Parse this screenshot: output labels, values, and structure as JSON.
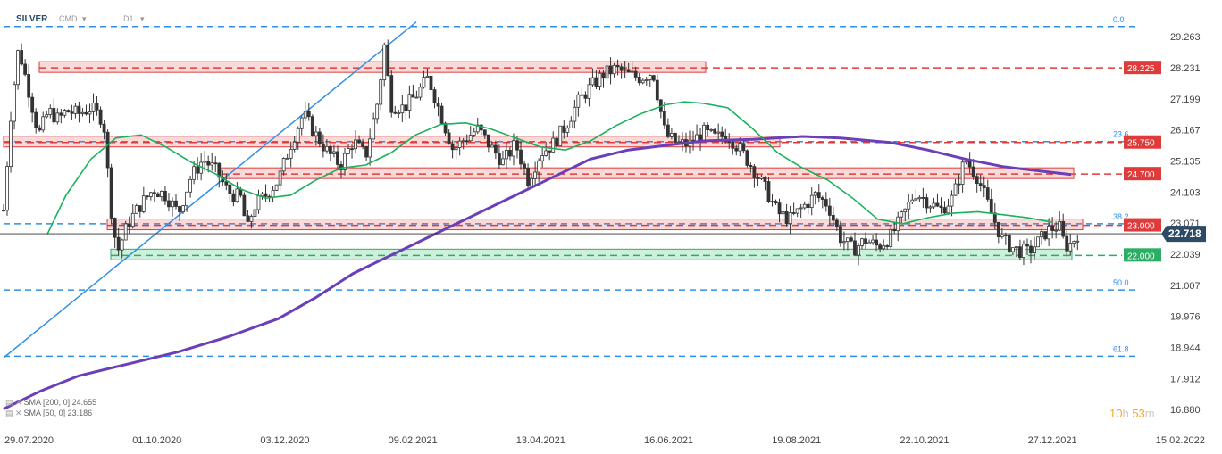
{
  "header": {
    "symbol": "SILVER",
    "type": "CMD",
    "timeframe": "D1"
  },
  "legend": [
    "SMA [200, 0] 24.655",
    "SMA [50, 0] 23.186"
  ],
  "countdown": {
    "hours": "10",
    "hours_unit": "h",
    "minutes": "53",
    "minutes_unit": "m"
  },
  "colors": {
    "resistance": "#e03b3b",
    "support": "#2cae64",
    "fib": "#2f8fe8",
    "sma200": "#6a3fb8",
    "sma50": "#19b25c",
    "candle_up": "#ffffff",
    "candle_down": "#333333"
  },
  "chart_data": {
    "type": "candlestick",
    "instrument": "SILVER",
    "timeframe": "D1",
    "ylim": [
      16.5,
      29.8
    ],
    "y_ticks": [
      "29.263",
      "28.231",
      "27.199",
      "26.167",
      "25.135",
      "24.103",
      "23.071",
      "22.039",
      "21.007",
      "19.976",
      "18.944",
      "17.912",
      "16.880"
    ],
    "x_ticks": [
      "29.07.2020",
      "01.10.2020",
      "03.12.2020",
      "09.02.2021",
      "13.04.2021",
      "16.06.2021",
      "19.08.2021",
      "22.10.2021",
      "27.12.2021",
      "15.02.2022"
    ],
    "current_price": {
      "value": 22.718,
      "label": "22.718"
    },
    "levels": [
      {
        "value": 28.225,
        "label": "28.225",
        "kind": "resistance"
      },
      {
        "value": 25.75,
        "label": "25.750",
        "kind": "resistance"
      },
      {
        "value": 24.7,
        "label": "24.700",
        "kind": "resistance"
      },
      {
        "value": 23.0,
        "label": "23.000",
        "kind": "resistance"
      },
      {
        "value": 22.0,
        "label": "22.000",
        "kind": "support"
      }
    ],
    "fibonacci": [
      {
        "value": 29.6,
        "label": "0.0"
      },
      {
        "value": 25.78,
        "label": "23.6"
      },
      {
        "value": 23.05,
        "label": "38.2"
      },
      {
        "value": 20.85,
        "label": "50.0"
      },
      {
        "value": 18.65,
        "label": "61.8"
      }
    ],
    "trendline": {
      "from": [
        "29.07.2020",
        18.6
      ],
      "to": [
        "07.01.2021",
        29.7
      ]
    },
    "series": [
      {
        "name": "SMA 200",
        "points": [
          [
            0,
            16.9
          ],
          [
            0.03,
            17.5
          ],
          [
            0.06,
            18.0
          ],
          [
            0.1,
            18.4
          ],
          [
            0.14,
            18.8
          ],
          [
            0.18,
            19.3
          ],
          [
            0.22,
            19.9
          ],
          [
            0.25,
            20.6
          ],
          [
            0.28,
            21.4
          ],
          [
            0.31,
            22.0
          ],
          [
            0.34,
            22.6
          ],
          [
            0.37,
            23.2
          ],
          [
            0.4,
            23.8
          ],
          [
            0.43,
            24.4
          ],
          [
            0.45,
            24.8
          ],
          [
            0.47,
            25.2
          ],
          [
            0.5,
            25.5
          ],
          [
            0.53,
            25.65
          ],
          [
            0.56,
            25.8
          ],
          [
            0.6,
            25.85
          ],
          [
            0.64,
            25.95
          ],
          [
            0.67,
            25.9
          ],
          [
            0.71,
            25.75
          ],
          [
            0.74,
            25.5
          ],
          [
            0.77,
            25.2
          ],
          [
            0.8,
            24.95
          ],
          [
            0.83,
            24.8
          ],
          [
            0.855,
            24.68
          ]
        ]
      },
      {
        "name": "SMA 50",
        "points": [
          [
            0.035,
            22.7
          ],
          [
            0.05,
            24.0
          ],
          [
            0.07,
            25.2
          ],
          [
            0.09,
            25.9
          ],
          [
            0.11,
            26.0
          ],
          [
            0.13,
            25.6
          ],
          [
            0.15,
            25.1
          ],
          [
            0.17,
            24.7
          ],
          [
            0.19,
            24.2
          ],
          [
            0.21,
            23.9
          ],
          [
            0.23,
            24.0
          ],
          [
            0.25,
            24.5
          ],
          [
            0.27,
            24.9
          ],
          [
            0.29,
            25.0
          ],
          [
            0.31,
            25.4
          ],
          [
            0.33,
            26.0
          ],
          [
            0.35,
            26.35
          ],
          [
            0.37,
            26.4
          ],
          [
            0.39,
            26.2
          ],
          [
            0.41,
            25.9
          ],
          [
            0.43,
            25.6
          ],
          [
            0.45,
            25.5
          ],
          [
            0.47,
            25.8
          ],
          [
            0.49,
            26.3
          ],
          [
            0.51,
            26.7
          ],
          [
            0.53,
            27.0
          ],
          [
            0.545,
            27.1
          ],
          [
            0.56,
            27.05
          ],
          [
            0.58,
            26.9
          ],
          [
            0.6,
            26.2
          ],
          [
            0.62,
            25.4
          ],
          [
            0.64,
            24.9
          ],
          [
            0.66,
            24.5
          ],
          [
            0.68,
            23.9
          ],
          [
            0.7,
            23.2
          ],
          [
            0.72,
            23.05
          ],
          [
            0.74,
            23.25
          ],
          [
            0.76,
            23.4
          ],
          [
            0.78,
            23.45
          ],
          [
            0.8,
            23.35
          ],
          [
            0.82,
            23.25
          ],
          [
            0.84,
            23.1
          ]
        ]
      }
    ],
    "candles_trace": [
      [
        0,
        23.5
      ],
      [
        0.006,
        26.8
      ],
      [
        0.012,
        28.9
      ],
      [
        0.02,
        27.5
      ],
      [
        0.028,
        26.0
      ],
      [
        0.036,
        26.8
      ],
      [
        0.044,
        26.5
      ],
      [
        0.05,
        26.8
      ],
      [
        0.06,
        26.7
      ],
      [
        0.07,
        26.9
      ],
      [
        0.08,
        26.5
      ],
      [
        0.085,
        24.0
      ],
      [
        0.088,
        22.8
      ],
      [
        0.092,
        22.2
      ],
      [
        0.1,
        23.1
      ],
      [
        0.11,
        23.7
      ],
      [
        0.12,
        24.2
      ],
      [
        0.13,
        24.0
      ],
      [
        0.14,
        23.4
      ],
      [
        0.15,
        24.6
      ],
      [
        0.16,
        25.2
      ],
      [
        0.17,
        24.8
      ],
      [
        0.18,
        24.1
      ],
      [
        0.19,
        23.9
      ],
      [
        0.195,
        22.8
      ],
      [
        0.2,
        23.6
      ],
      [
        0.21,
        24.0
      ],
      [
        0.22,
        24.5
      ],
      [
        0.23,
        25.7
      ],
      [
        0.24,
        26.7
      ],
      [
        0.25,
        26.0
      ],
      [
        0.26,
        25.4
      ],
      [
        0.27,
        25.0
      ],
      [
        0.28,
        25.8
      ],
      [
        0.29,
        25.3
      ],
      [
        0.3,
        27.2
      ],
      [
        0.305,
        29.0
      ],
      [
        0.31,
        27.0
      ],
      [
        0.32,
        26.9
      ],
      [
        0.33,
        27.3
      ],
      [
        0.34,
        27.9
      ],
      [
        0.35,
        26.7
      ],
      [
        0.36,
        25.5
      ],
      [
        0.37,
        25.9
      ],
      [
        0.38,
        26.2
      ],
      [
        0.39,
        25.6
      ],
      [
        0.4,
        25.1
      ],
      [
        0.41,
        25.7
      ],
      [
        0.42,
        24.5
      ],
      [
        0.43,
        25.4
      ],
      [
        0.44,
        25.7
      ],
      [
        0.45,
        26.3
      ],
      [
        0.46,
        27.1
      ],
      [
        0.47,
        27.6
      ],
      [
        0.48,
        28.0
      ],
      [
        0.49,
        28.2
      ],
      [
        0.5,
        28.0
      ],
      [
        0.51,
        27.9
      ],
      [
        0.52,
        28.1
      ],
      [
        0.53,
        26.0
      ],
      [
        0.54,
        25.7
      ],
      [
        0.55,
        25.7
      ],
      [
        0.56,
        26.1
      ],
      [
        0.57,
        25.9
      ],
      [
        0.58,
        26.0
      ],
      [
        0.59,
        25.5
      ],
      [
        0.6,
        24.9
      ],
      [
        0.61,
        24.2
      ],
      [
        0.62,
        23.4
      ],
      [
        0.63,
        23.2
      ],
      [
        0.64,
        23.6
      ],
      [
        0.65,
        24.0
      ],
      [
        0.66,
        23.7
      ],
      [
        0.67,
        22.6
      ],
      [
        0.68,
        22.2
      ],
      [
        0.69,
        22.5
      ],
      [
        0.7,
        22.3
      ],
      [
        0.71,
        22.6
      ],
      [
        0.72,
        23.3
      ],
      [
        0.73,
        24.1
      ],
      [
        0.74,
        23.8
      ],
      [
        0.75,
        23.5
      ],
      [
        0.76,
        23.9
      ],
      [
        0.77,
        25.2
      ],
      [
        0.78,
        24.6
      ],
      [
        0.79,
        23.5
      ],
      [
        0.8,
        22.5
      ],
      [
        0.81,
        22.2
      ],
      [
        0.82,
        22.1
      ],
      [
        0.83,
        22.5
      ],
      [
        0.835,
        22.8
      ],
      [
        0.84,
        22.9
      ],
      [
        0.845,
        23.0
      ],
      [
        0.85,
        22.3
      ],
      [
        0.855,
        22.4
      ],
      [
        0.86,
        22.72
      ]
    ]
  }
}
